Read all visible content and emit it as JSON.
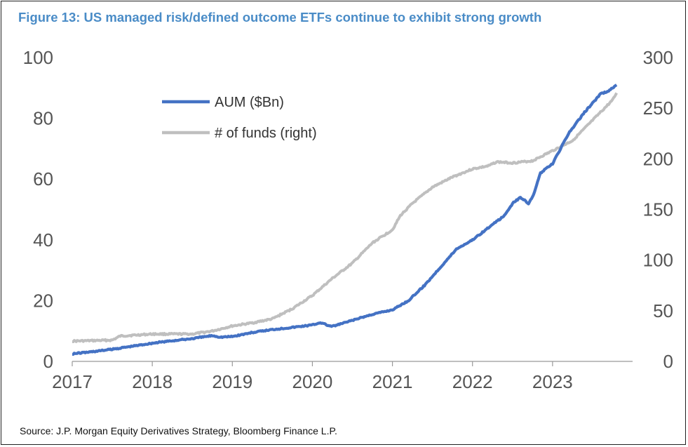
{
  "title": "Figure 13: US managed risk/defined outcome ETFs continue to exhibit strong growth",
  "source": "Source: J.P. Morgan Equity Derivatives Strategy, Bloomberg Finance L.P.",
  "colors": {
    "aum": "#4472c4",
    "funds": "#bfbfbf",
    "title": "#4a8cc7"
  },
  "chart_data": {
    "type": "line",
    "x_ticks": [
      "2017",
      "2018",
      "2019",
      "2020",
      "2021",
      "2022",
      "2023"
    ],
    "xlim": [
      2017,
      2024
    ],
    "ylim_left": [
      0,
      100
    ],
    "ylim_right": [
      0,
      300
    ],
    "y_ticks_left": [
      "0",
      "20",
      "40",
      "60",
      "80",
      "100"
    ],
    "y_ticks_right": [
      "0",
      "50",
      "100",
      "150",
      "200",
      "250",
      "300"
    ],
    "grid": false,
    "legend_placement": "top-left",
    "series": [
      {
        "name": "AUM ($Bn)",
        "axis": "left",
        "x": [
          2017.0,
          2017.25,
          2017.5,
          2017.75,
          2018.0,
          2018.25,
          2018.5,
          2018.75,
          2018.85,
          2019.0,
          2019.25,
          2019.5,
          2019.75,
          2020.0,
          2020.1,
          2020.2,
          2020.25,
          2020.5,
          2020.75,
          2021.0,
          2021.2,
          2021.4,
          2021.6,
          2021.8,
          2022.0,
          2022.2,
          2022.4,
          2022.5,
          2022.6,
          2022.7,
          2022.75,
          2022.8,
          2022.85,
          2023.0,
          2023.2,
          2023.4,
          2023.6,
          2023.7,
          2023.8
        ],
        "y": [
          2.5,
          3.2,
          4.0,
          5.0,
          6.0,
          6.8,
          7.5,
          8.5,
          8.0,
          8.2,
          9.5,
          10.5,
          11.2,
          12.0,
          12.8,
          11.8,
          11.5,
          13.5,
          15.5,
          17.0,
          20.0,
          25.0,
          31.0,
          37.0,
          40.0,
          44.0,
          48.0,
          52.0,
          54.0,
          52.0,
          54.0,
          58.0,
          62.0,
          65.0,
          75.0,
          82.0,
          88.0,
          89.0,
          91.0
        ]
      },
      {
        "name": "# of funds (right)",
        "axis": "right",
        "x": [
          2017.0,
          2017.5,
          2017.6,
          2018.0,
          2018.5,
          2018.75,
          2019.0,
          2019.25,
          2019.5,
          2019.75,
          2020.0,
          2020.25,
          2020.5,
          2020.75,
          2021.0,
          2021.1,
          2021.25,
          2021.5,
          2021.75,
          2022.0,
          2022.2,
          2022.3,
          2022.5,
          2022.75,
          2023.0,
          2023.25,
          2023.5,
          2023.75,
          2023.8
        ],
        "y": [
          20,
          21,
          25,
          27,
          27,
          30,
          35,
          38,
          42,
          52,
          65,
          82,
          97,
          117,
          130,
          144,
          156,
          172,
          182,
          190,
          193,
          197,
          196,
          198,
          208,
          218,
          238,
          258,
          265
        ]
      }
    ]
  }
}
